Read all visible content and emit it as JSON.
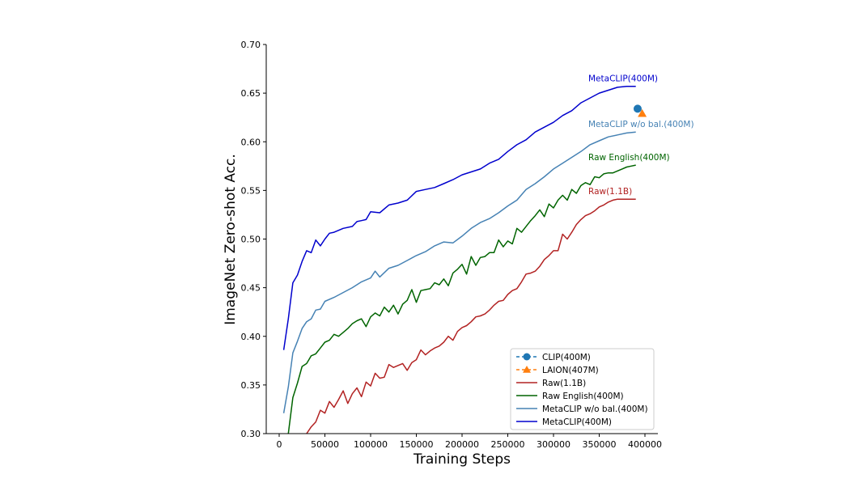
{
  "chart_data": {
    "type": "line",
    "title": "",
    "xlabel": "Training Steps",
    "ylabel": "ImageNet Zero-shot Acc.",
    "xlim": [
      -15000,
      420000
    ],
    "ylim": [
      0.3,
      0.7
    ],
    "x_ticks": [
      0,
      50000,
      100000,
      150000,
      200000,
      250000,
      300000,
      350000,
      400000
    ],
    "x_tick_labels": [
      "0",
      "50000",
      "100000",
      "150000",
      "200000",
      "250000",
      "300000",
      "350000",
      "400000"
    ],
    "y_ticks": [
      0.3,
      0.35,
      0.4,
      0.45,
      0.5,
      0.55,
      0.6,
      0.65,
      0.7
    ],
    "y_tick_labels": [
      "0.30",
      "0.35",
      "0.40",
      "0.45",
      "0.50",
      "0.55",
      "0.60",
      "0.65",
      "0.70"
    ],
    "grid": false,
    "legend_position": "bottom-right",
    "legend": [
      {
        "label": "CLIP(400M)",
        "color": "#1f77b4",
        "style": "dashed-marker",
        "marker": "circle"
      },
      {
        "label": "LAION(407M)",
        "color": "#ff7f0e",
        "style": "dashed-marker",
        "marker": "triangle"
      },
      {
        "label": "Raw(1.1B)",
        "color": "#b22222",
        "style": "line"
      },
      {
        "label": "Raw English(400M)",
        "color": "#006400",
        "style": "line"
      },
      {
        "label": "MetaCLIP w/o bal.(400M)",
        "color": "#4682b4",
        "style": "line"
      },
      {
        "label": "MetaCLIP(400M)",
        "color": "#0000cd",
        "style": "line"
      }
    ],
    "points": [
      {
        "name": "CLIP(400M)",
        "x": 392000,
        "y": 0.634,
        "color": "#1f77b4",
        "marker": "circle"
      },
      {
        "name": "LAION(407M)",
        "x": 397000,
        "y": 0.629,
        "color": "#ff7f0e",
        "marker": "triangle"
      }
    ],
    "series": [
      {
        "name": "MetaCLIP(400M)",
        "color": "#0000cd",
        "end_label": "MetaCLIP(400M)",
        "x": [
          5000,
          10000,
          15000,
          20000,
          25000,
          30000,
          35000,
          40000,
          45000,
          50000,
          55000,
          60000,
          70000,
          80000,
          85000,
          90000,
          95000,
          100000,
          110000,
          120000,
          130000,
          140000,
          150000,
          160000,
          170000,
          180000,
          190000,
          200000,
          210000,
          220000,
          230000,
          240000,
          250000,
          260000,
          270000,
          280000,
          290000,
          300000,
          310000,
          320000,
          330000,
          340000,
          350000,
          360000,
          370000,
          380000,
          390000
        ],
        "y": [
          0.386,
          0.418,
          0.455,
          0.463,
          0.477,
          0.488,
          0.486,
          0.499,
          0.493,
          0.5,
          0.506,
          0.507,
          0.511,
          0.513,
          0.518,
          0.519,
          0.52,
          0.528,
          0.527,
          0.535,
          0.537,
          0.54,
          0.549,
          0.551,
          0.553,
          0.557,
          0.561,
          0.566,
          0.569,
          0.572,
          0.578,
          0.582,
          0.59,
          0.597,
          0.602,
          0.61,
          0.615,
          0.62,
          0.627,
          0.632,
          0.64,
          0.645,
          0.65,
          0.653,
          0.656,
          0.657,
          0.657
        ]
      },
      {
        "name": "MetaCLIP w/o bal.(400M)",
        "color": "#4682b4",
        "end_label": "MetaCLIP w/o bal.(400M)",
        "x": [
          5000,
          10000,
          15000,
          20000,
          25000,
          30000,
          35000,
          40000,
          45000,
          50000,
          60000,
          70000,
          80000,
          90000,
          100000,
          105000,
          110000,
          120000,
          130000,
          140000,
          150000,
          160000,
          170000,
          180000,
          190000,
          200000,
          210000,
          220000,
          230000,
          240000,
          250000,
          260000,
          270000,
          280000,
          290000,
          300000,
          310000,
          320000,
          330000,
          340000,
          350000,
          360000,
          370000,
          380000,
          390000
        ],
        "y": [
          0.321,
          0.348,
          0.383,
          0.395,
          0.408,
          0.415,
          0.418,
          0.427,
          0.428,
          0.436,
          0.44,
          0.445,
          0.45,
          0.456,
          0.46,
          0.467,
          0.461,
          0.47,
          0.473,
          0.478,
          0.483,
          0.487,
          0.493,
          0.497,
          0.496,
          0.503,
          0.511,
          0.517,
          0.521,
          0.527,
          0.534,
          0.54,
          0.551,
          0.557,
          0.564,
          0.572,
          0.578,
          0.584,
          0.59,
          0.597,
          0.601,
          0.605,
          0.607,
          0.609,
          0.61
        ]
      },
      {
        "name": "Raw English(400M)",
        "color": "#006400",
        "end_label": "Raw English(400M)",
        "x": [
          10000,
          15000,
          20000,
          25000,
          30000,
          35000,
          40000,
          45000,
          50000,
          55000,
          60000,
          65000,
          70000,
          75000,
          80000,
          85000,
          90000,
          95000,
          100000,
          105000,
          110000,
          115000,
          120000,
          125000,
          130000,
          135000,
          140000,
          145000,
          150000,
          155000,
          160000,
          165000,
          170000,
          175000,
          180000,
          185000,
          190000,
          195000,
          200000,
          205000,
          210000,
          215000,
          220000,
          225000,
          230000,
          235000,
          240000,
          245000,
          250000,
          255000,
          260000,
          265000,
          270000,
          275000,
          280000,
          285000,
          290000,
          295000,
          300000,
          305000,
          310000,
          315000,
          320000,
          325000,
          330000,
          335000,
          340000,
          345000,
          350000,
          355000,
          360000,
          365000,
          370000,
          375000,
          380000,
          385000,
          390000
        ],
        "y": [
          0.3,
          0.337,
          0.352,
          0.369,
          0.372,
          0.38,
          0.382,
          0.388,
          0.394,
          0.396,
          0.402,
          0.4,
          0.404,
          0.408,
          0.413,
          0.416,
          0.418,
          0.41,
          0.42,
          0.424,
          0.421,
          0.43,
          0.425,
          0.432,
          0.423,
          0.433,
          0.437,
          0.448,
          0.435,
          0.447,
          0.448,
          0.449,
          0.455,
          0.453,
          0.459,
          0.452,
          0.465,
          0.469,
          0.474,
          0.464,
          0.482,
          0.473,
          0.481,
          0.482,
          0.486,
          0.486,
          0.499,
          0.492,
          0.498,
          0.495,
          0.511,
          0.507,
          0.513,
          0.519,
          0.524,
          0.53,
          0.523,
          0.536,
          0.532,
          0.54,
          0.545,
          0.54,
          0.551,
          0.547,
          0.555,
          0.558,
          0.556,
          0.564,
          0.563,
          0.567,
          0.568,
          0.568,
          0.57,
          0.572,
          0.574,
          0.575,
          0.576
        ]
      },
      {
        "name": "Raw(1.1B)",
        "color": "#b22222",
        "end_label": "Raw(1.1B)",
        "x": [
          30000,
          35000,
          40000,
          45000,
          50000,
          55000,
          60000,
          65000,
          70000,
          75000,
          80000,
          85000,
          90000,
          95000,
          100000,
          105000,
          110000,
          115000,
          120000,
          125000,
          130000,
          135000,
          140000,
          145000,
          150000,
          155000,
          160000,
          165000,
          170000,
          175000,
          180000,
          185000,
          190000,
          195000,
          200000,
          205000,
          210000,
          215000,
          220000,
          225000,
          230000,
          235000,
          240000,
          245000,
          250000,
          255000,
          260000,
          265000,
          270000,
          275000,
          280000,
          285000,
          290000,
          295000,
          300000,
          305000,
          310000,
          315000,
          320000,
          325000,
          330000,
          335000,
          340000,
          345000,
          350000,
          355000,
          360000,
          365000,
          370000,
          375000,
          380000,
          385000,
          390000
        ],
        "y": [
          0.3,
          0.307,
          0.312,
          0.324,
          0.321,
          0.333,
          0.327,
          0.335,
          0.344,
          0.331,
          0.341,
          0.347,
          0.338,
          0.353,
          0.349,
          0.362,
          0.357,
          0.358,
          0.371,
          0.368,
          0.37,
          0.372,
          0.365,
          0.373,
          0.376,
          0.386,
          0.381,
          0.385,
          0.388,
          0.39,
          0.394,
          0.4,
          0.396,
          0.405,
          0.409,
          0.411,
          0.415,
          0.42,
          0.421,
          0.423,
          0.427,
          0.432,
          0.436,
          0.437,
          0.443,
          0.447,
          0.449,
          0.456,
          0.464,
          0.465,
          0.467,
          0.472,
          0.479,
          0.483,
          0.488,
          0.488,
          0.505,
          0.5,
          0.507,
          0.515,
          0.52,
          0.524,
          0.526,
          0.529,
          0.533,
          0.535,
          0.538,
          0.54,
          0.541,
          0.541,
          0.541,
          0.541,
          0.541
        ]
      }
    ]
  }
}
